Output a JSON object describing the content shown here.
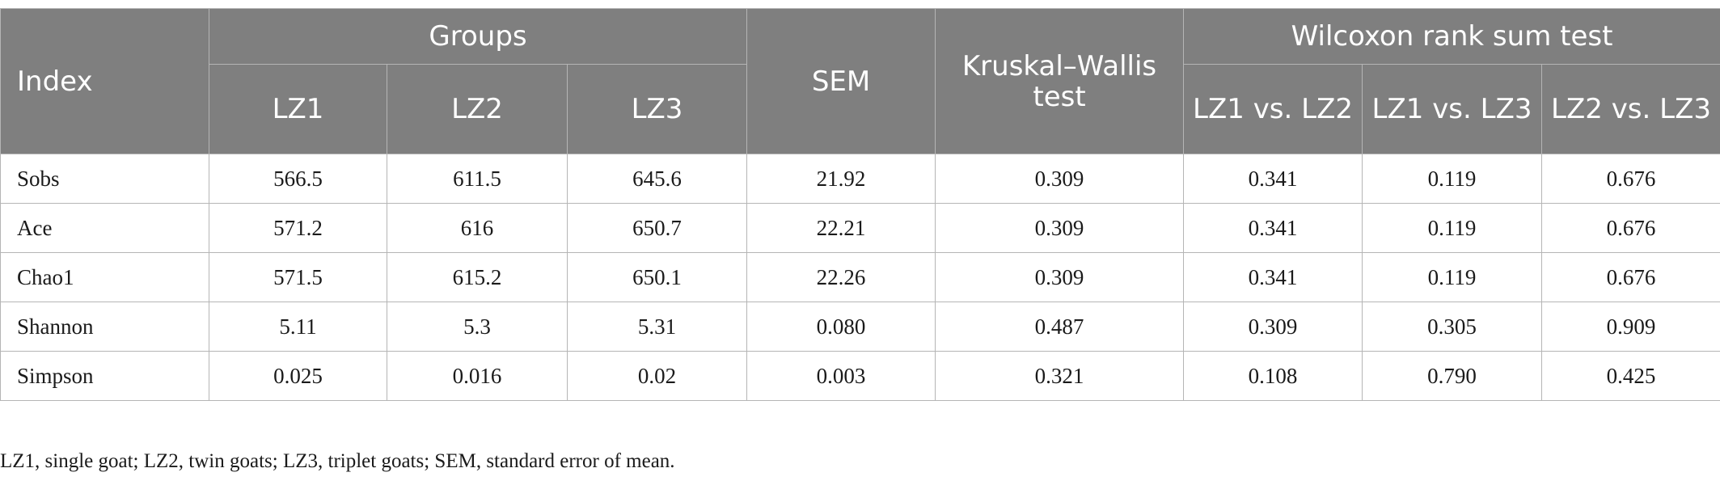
{
  "table": {
    "headers": {
      "index": "Index",
      "groups": "Groups",
      "group_cols": [
        "LZ1",
        "LZ2",
        "LZ3"
      ],
      "sem": "SEM",
      "kruskal": "Kruskal–Wallis test",
      "wilcoxon": "Wilcoxon rank sum test",
      "wilcoxon_cols": [
        "LZ1 vs. LZ2",
        "LZ1 vs. LZ3",
        "LZ2 vs. LZ3"
      ]
    },
    "rows": [
      {
        "index": "Sobs",
        "lz1": "566.5",
        "lz2": "611.5",
        "lz3": "645.6",
        "sem": "21.92",
        "kw": "0.309",
        "w12": "0.341",
        "w13": "0.119",
        "w23": "0.676"
      },
      {
        "index": "Ace",
        "lz1": "571.2",
        "lz2": "616",
        "lz3": "650.7",
        "sem": "22.21",
        "kw": "0.309",
        "w12": "0.341",
        "w13": "0.119",
        "w23": "0.676"
      },
      {
        "index": "Chao1",
        "lz1": "571.5",
        "lz2": "615.2",
        "lz3": "650.1",
        "sem": "22.26",
        "kw": "0.309",
        "w12": "0.341",
        "w13": "0.119",
        "w23": "0.676"
      },
      {
        "index": "Shannon",
        "lz1": "5.11",
        "lz2": "5.3",
        "lz3": "5.31",
        "sem": "0.080",
        "kw": "0.487",
        "w12": "0.309",
        "w13": "0.305",
        "w23": "0.909"
      },
      {
        "index": "Simpson",
        "lz1": "0.025",
        "lz2": "0.016",
        "lz3": "0.02",
        "sem": "0.003",
        "kw": "0.321",
        "w12": "0.108",
        "w13": "0.790",
        "w23": "0.425"
      }
    ]
  },
  "footnote": "LZ1, single goat; LZ2, twin goats; LZ3, triplet goats; SEM, standard error of mean."
}
